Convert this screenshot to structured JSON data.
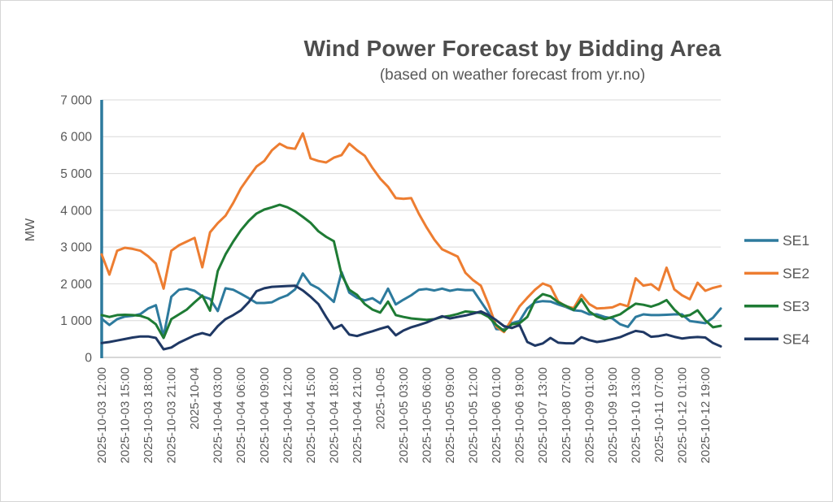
{
  "chart": {
    "title": "Wind Power Forecast by Bidding Area",
    "subtitle": "(based on weather forecast from yr.no)",
    "y_axis_label": "MW",
    "y_ticks": [
      "0",
      "1 000",
      "2 000",
      "3 000",
      "4 000",
      "5 000",
      "6 000",
      "7 000"
    ],
    "colors": {
      "grid": "#d9d9d9",
      "x_axis": "#bfbfbf",
      "y_axis": "#2d7a9d",
      "text": "#595959",
      "title_text": "#4d4d4d"
    }
  },
  "chart_data": {
    "type": "line",
    "title": "Wind Power Forecast by Bidding Area",
    "subtitle": "(based on weather forecast from yr.no)",
    "xlabel": "",
    "ylabel": "MW",
    "ylim": [
      0,
      7000
    ],
    "y_tick_step": 1000,
    "grid": true,
    "legend_position": "right",
    "x_tick_every": 3,
    "x_tick_labels": [
      "2025-10-03 12:00",
      "2025-10-03 15:00",
      "2025-10-03 18:00",
      "2025-10-03 21:00",
      "2025-10-04",
      "2025-10-04 03:00",
      "2025-10-04 06:00",
      "2025-10-04 09:00",
      "2025-10-04 12:00",
      "2025-10-04 15:00",
      "2025-10-04 18:00",
      "2025-10-04 21:00",
      "2025-10-05",
      "2025-10-05 03:00",
      "2025-10-05 06:00",
      "2025-10-05 09:00",
      "2025-10-05 12:00",
      "2025-10-06 01:00",
      "2025-10-06 19:00",
      "2025-10-07 13:00",
      "2025-10-08 07:00",
      "2025-10-09 01:00",
      "2025-10-09 19:00",
      "2025-10-10 13:00",
      "2025-10-11 07:00",
      "2025-10-12 01:00",
      "2025-10-12 19:00"
    ],
    "series": [
      {
        "name": "SE1",
        "color": "#2d7a9d",
        "values": [
          1050,
          880,
          1040,
          1110,
          1130,
          1180,
          1330,
          1420,
          570,
          1650,
          1840,
          1870,
          1810,
          1660,
          1590,
          1260,
          1880,
          1840,
          1730,
          1610,
          1480,
          1480,
          1500,
          1610,
          1690,
          1850,
          2280,
          1990,
          1880,
          1700,
          1510,
          2320,
          1760,
          1620,
          1550,
          1610,
          1470,
          1870,
          1440,
          1570,
          1690,
          1840,
          1860,
          1820,
          1870,
          1810,
          1850,
          1830,
          1830,
          1520,
          1210,
          770,
          760,
          930,
          990,
          1330,
          1500,
          1530,
          1520,
          1440,
          1370,
          1280,
          1260,
          1170,
          1170,
          1100,
          1060,
          900,
          830,
          1100,
          1170,
          1150,
          1150,
          1160,
          1170,
          1170,
          990,
          960,
          930,
          1080,
          1330
        ]
      },
      {
        "name": "SE2",
        "color": "#ed7d31",
        "values": [
          2800,
          2250,
          2900,
          2980,
          2950,
          2900,
          2750,
          2550,
          1870,
          2900,
          3050,
          3150,
          3250,
          2450,
          3400,
          3650,
          3850,
          4200,
          4600,
          4900,
          5190,
          5340,
          5630,
          5810,
          5700,
          5670,
          6090,
          5410,
          5340,
          5300,
          5430,
          5500,
          5810,
          5630,
          5480,
          5150,
          4860,
          4640,
          4330,
          4310,
          4330,
          3900,
          3530,
          3200,
          2940,
          2840,
          2740,
          2300,
          2100,
          1950,
          1440,
          840,
          690,
          1040,
          1390,
          1620,
          1840,
          2010,
          1930,
          1520,
          1390,
          1340,
          1700,
          1450,
          1330,
          1340,
          1360,
          1450,
          1390,
          2150,
          1950,
          1990,
          1830,
          2440,
          1850,
          1690,
          1580,
          2030,
          1810,
          1890,
          1940
        ]
      },
      {
        "name": "SE3",
        "color": "#1e7b34",
        "values": [
          1150,
          1100,
          1150,
          1160,
          1150,
          1130,
          1060,
          900,
          530,
          1040,
          1170,
          1300,
          1500,
          1680,
          1270,
          2350,
          2800,
          3150,
          3460,
          3710,
          3910,
          4020,
          4080,
          4150,
          4080,
          3970,
          3820,
          3660,
          3430,
          3280,
          3160,
          2250,
          1840,
          1700,
          1450,
          1300,
          1220,
          1520,
          1150,
          1100,
          1060,
          1040,
          1020,
          1040,
          1100,
          1130,
          1180,
          1250,
          1230,
          1210,
          1100,
          880,
          720,
          900,
          930,
          1100,
          1550,
          1720,
          1660,
          1500,
          1400,
          1290,
          1580,
          1250,
          1110,
          1040,
          1100,
          1170,
          1320,
          1460,
          1430,
          1380,
          1450,
          1560,
          1300,
          1110,
          1150,
          1280,
          1010,
          820,
          860
        ]
      },
      {
        "name": "SE4",
        "color": "#1f3864",
        "values": [
          390,
          420,
          460,
          500,
          540,
          570,
          570,
          530,
          220,
          270,
          400,
          500,
          600,
          660,
          600,
          850,
          1040,
          1150,
          1280,
          1500,
          1800,
          1880,
          1920,
          1930,
          1940,
          1950,
          1820,
          1650,
          1450,
          1100,
          780,
          880,
          620,
          580,
          650,
          710,
          780,
          840,
          600,
          730,
          820,
          880,
          950,
          1040,
          1120,
          1060,
          1100,
          1140,
          1190,
          1250,
          1150,
          1010,
          850,
          800,
          880,
          420,
          320,
          380,
          530,
          400,
          385,
          385,
          550,
          470,
          420,
          450,
          500,
          550,
          640,
          720,
          690,
          560,
          580,
          620,
          560,
          515,
          540,
          555,
          540,
          390,
          300
        ]
      }
    ]
  }
}
